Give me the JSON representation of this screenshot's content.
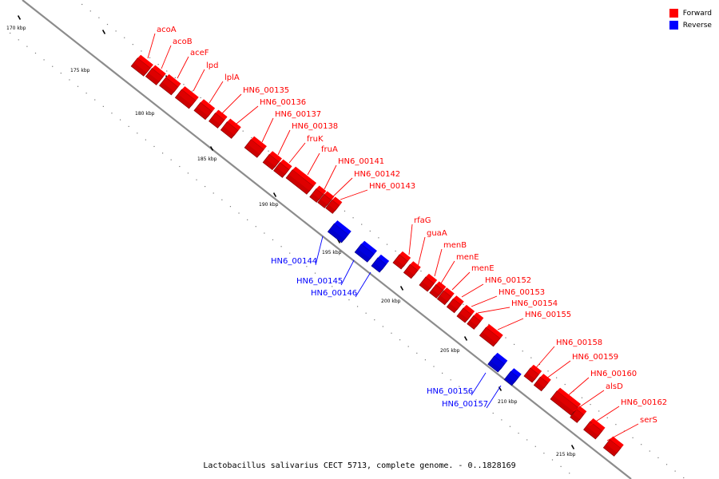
{
  "colors": {
    "forward": "#ff0000",
    "reverse": "#0000ff"
  },
  "legend": {
    "forward_label": "Forward",
    "reverse_label": "Reverse"
  },
  "caption": "Lactobacillus salivarius CECT 5713, complete genome. - 0..1828169",
  "ticks": [
    {
      "label": "170 kbp"
    },
    {
      "label": "175 kbp"
    },
    {
      "label": "180 kbp"
    },
    {
      "label": "185 kbp"
    },
    {
      "label": "190 kbp"
    },
    {
      "label": "195 kbp"
    },
    {
      "label": "200 kbp"
    },
    {
      "label": "205 kbp"
    },
    {
      "label": "210 kbp"
    },
    {
      "label": "215 kbp"
    }
  ],
  "genes": [
    {
      "name": "acoA",
      "strand": "forward"
    },
    {
      "name": "acoB",
      "strand": "forward"
    },
    {
      "name": "aceF",
      "strand": "forward"
    },
    {
      "name": "lpd",
      "strand": "forward"
    },
    {
      "name": "lplA",
      "strand": "forward"
    },
    {
      "name": "HN6_00135",
      "strand": "forward"
    },
    {
      "name": "HN6_00136",
      "strand": "forward"
    },
    {
      "name": "HN6_00137",
      "strand": "forward"
    },
    {
      "name": "HN6_00138",
      "strand": "forward"
    },
    {
      "name": "fruK",
      "strand": "forward"
    },
    {
      "name": "fruA",
      "strand": "forward"
    },
    {
      "name": "HN6_00141",
      "strand": "forward"
    },
    {
      "name": "HN6_00142",
      "strand": "forward"
    },
    {
      "name": "HN6_00143",
      "strand": "forward"
    },
    {
      "name": "HN6_00144",
      "strand": "reverse"
    },
    {
      "name": "HN6_00145",
      "strand": "reverse"
    },
    {
      "name": "HN6_00146",
      "strand": "reverse"
    },
    {
      "name": "rfaG",
      "strand": "forward"
    },
    {
      "name": "guaA",
      "strand": "forward"
    },
    {
      "name": "menB",
      "strand": "forward"
    },
    {
      "name": "menE",
      "strand": "forward"
    },
    {
      "name": "menE",
      "strand": "forward"
    },
    {
      "name": "HN6_00152",
      "strand": "forward"
    },
    {
      "name": "HN6_00153",
      "strand": "forward"
    },
    {
      "name": "HN6_00154",
      "strand": "forward"
    },
    {
      "name": "HN6_00155",
      "strand": "forward"
    },
    {
      "name": "HN6_00156",
      "strand": "reverse"
    },
    {
      "name": "HN6_00157",
      "strand": "reverse"
    },
    {
      "name": "HN6_00158",
      "strand": "forward"
    },
    {
      "name": "HN6_00159",
      "strand": "forward"
    },
    {
      "name": "HN6_00160",
      "strand": "forward"
    },
    {
      "name": "alsD",
      "strand": "forward"
    },
    {
      "name": "HN6_00162",
      "strand": "forward"
    },
    {
      "name": "serS",
      "strand": "forward"
    }
  ]
}
